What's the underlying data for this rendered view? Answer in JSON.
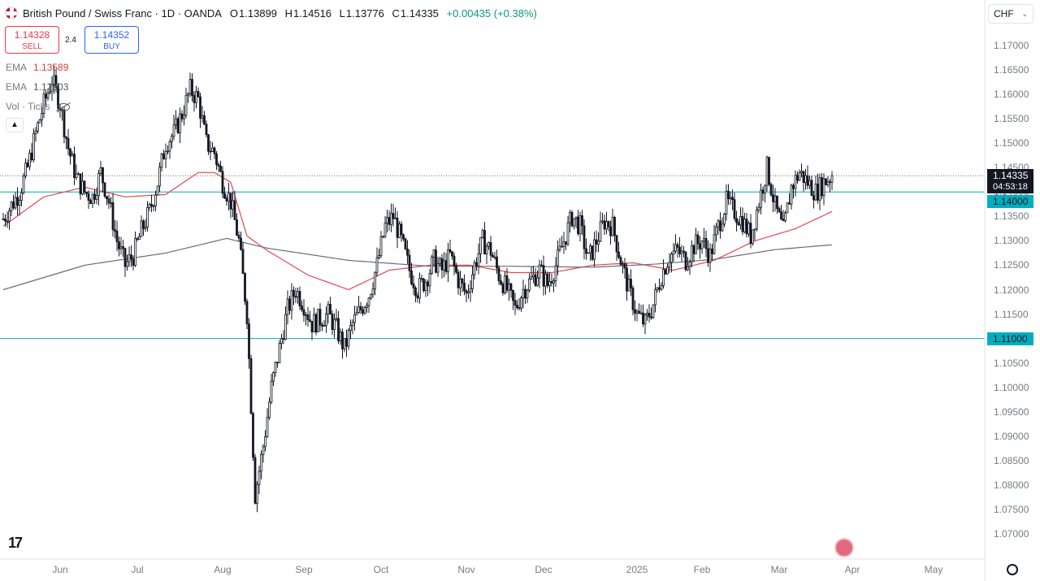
{
  "header": {
    "symbol_title": "British Pound / Swiss Franc · 1D · OANDA",
    "ohlc": [
      {
        "key": "O",
        "value": "1.13899"
      },
      {
        "key": "H",
        "value": "1.14516"
      },
      {
        "key": "L",
        "value": "1.13776"
      },
      {
        "key": "C",
        "value": "1.14335"
      }
    ],
    "change": "+0.00435 (+0.38%)",
    "flag_icon": "gbp-chf-flag-icon"
  },
  "trade": {
    "sell_price": "1.14328",
    "sell_label": "SELL",
    "spread": "2.4",
    "buy_price": "1.14352",
    "buy_label": "BUY"
  },
  "indicators": [
    {
      "name": "EMA",
      "value": "1.13589"
    },
    {
      "name": "EMA",
      "value": "1.12903"
    },
    {
      "name": "Vol · Ticks",
      "value": ""
    }
  ],
  "currency": "CHF",
  "price_labels": {
    "last": "1.14335",
    "countdown": "04:53:18",
    "level_high": "1.14000",
    "level_low": "1.11000"
  },
  "colors": {
    "up": "#089981",
    "down": "#131722",
    "ema_fast": "#e2494f",
    "ema_slow": "#6a6d78",
    "level": "#00aebf"
  },
  "chart_data": {
    "type": "candlestick",
    "symbol": "GBPCHF",
    "ylim": [
      1.065,
      1.175
    ],
    "y_ticks": [
      "1.17000",
      "1.16500",
      "1.16000",
      "1.15500",
      "1.15000",
      "1.14500",
      "1.14000",
      "1.13500",
      "1.13000",
      "1.12500",
      "1.12000",
      "1.11500",
      "1.11000",
      "1.10500",
      "1.10000",
      "1.09500",
      "1.09000",
      "1.08500",
      "1.08000",
      "1.07500",
      "1.07000"
    ],
    "x_ticks": [
      "Jun",
      "Jul",
      "Aug",
      "Sep",
      "Oct",
      "Nov",
      "Dec",
      "2025",
      "Feb",
      "Mar",
      "Apr",
      "May"
    ],
    "horizontal_levels": [
      1.14,
      1.11
    ],
    "last_price": 1.14335,
    "close_path": [
      [
        0,
        1.1345
      ],
      [
        8,
        1.14
      ],
      [
        12,
        1.145
      ],
      [
        16,
        1.152
      ],
      [
        20,
        1.158
      ],
      [
        24,
        1.163
      ],
      [
        28,
        1.158
      ],
      [
        32,
        1.149
      ],
      [
        36,
        1.143
      ],
      [
        40,
        1.14
      ],
      [
        44,
        1.139
      ],
      [
        48,
        1.144
      ],
      [
        52,
        1.138
      ],
      [
        56,
        1.13
      ],
      [
        60,
        1.125
      ],
      [
        64,
        1.127
      ],
      [
        68,
        1.132
      ],
      [
        72,
        1.136
      ],
      [
        76,
        1.142
      ],
      [
        80,
        1.15
      ],
      [
        84,
        1.152
      ],
      [
        88,
        1.156
      ],
      [
        92,
        1.161
      ],
      [
        96,
        1.159
      ],
      [
        100,
        1.15
      ],
      [
        104,
        1.148
      ],
      [
        108,
        1.142
      ],
      [
        112,
        1.138
      ],
      [
        116,
        1.13
      ],
      [
        120,
        1.115
      ],
      [
        124,
        1.078
      ],
      [
        128,
        1.088
      ],
      [
        132,
        1.1
      ],
      [
        136,
        1.108
      ],
      [
        140,
        1.116
      ],
      [
        144,
        1.12
      ],
      [
        148,
        1.117
      ],
      [
        152,
        1.113
      ],
      [
        156,
        1.114
      ],
      [
        160,
        1.115
      ],
      [
        164,
        1.112
      ],
      [
        168,
        1.108
      ],
      [
        172,
        1.113
      ],
      [
        176,
        1.116
      ],
      [
        180,
        1.119
      ],
      [
        184,
        1.125
      ],
      [
        188,
        1.133
      ],
      [
        192,
        1.135
      ],
      [
        196,
        1.13
      ],
      [
        200,
        1.124
      ],
      [
        204,
        1.12
      ],
      [
        208,
        1.122
      ],
      [
        212,
        1.126
      ],
      [
        216,
        1.124
      ],
      [
        220,
        1.127
      ],
      [
        224,
        1.122
      ],
      [
        228,
        1.119
      ],
      [
        232,
        1.125
      ],
      [
        236,
        1.13
      ],
      [
        240,
        1.128
      ],
      [
        244,
        1.123
      ],
      [
        248,
        1.12
      ],
      [
        252,
        1.116
      ],
      [
        256,
        1.12
      ],
      [
        260,
        1.122
      ],
      [
        264,
        1.124
      ],
      [
        268,
        1.121
      ],
      [
        272,
        1.125
      ],
      [
        276,
        1.13
      ],
      [
        280,
        1.135
      ],
      [
        284,
        1.133
      ],
      [
        288,
        1.126
      ],
      [
        292,
        1.13
      ],
      [
        296,
        1.134
      ],
      [
        300,
        1.133
      ],
      [
        304,
        1.126
      ],
      [
        308,
        1.12
      ],
      [
        312,
        1.115
      ],
      [
        316,
        1.113
      ],
      [
        320,
        1.117
      ],
      [
        324,
        1.123
      ],
      [
        328,
        1.127
      ],
      [
        332,
        1.128
      ],
      [
        336,
        1.126
      ],
      [
        340,
        1.129
      ],
      [
        344,
        1.13
      ],
      [
        348,
        1.127
      ],
      [
        352,
        1.133
      ],
      [
        356,
        1.138
      ],
      [
        360,
        1.136
      ],
      [
        364,
        1.134
      ],
      [
        368,
        1.131
      ],
      [
        372,
        1.138
      ],
      [
        376,
        1.145
      ],
      [
        380,
        1.137
      ],
      [
        384,
        1.132
      ],
      [
        388,
        1.141
      ],
      [
        392,
        1.144
      ],
      [
        396,
        1.142
      ],
      [
        400,
        1.14
      ],
      [
        404,
        1.142
      ],
      [
        408,
        1.14335
      ]
    ],
    "ema_fast": [
      [
        0,
        1.133
      ],
      [
        20,
        1.139
      ],
      [
        40,
        1.141
      ],
      [
        60,
        1.139
      ],
      [
        80,
        1.1395
      ],
      [
        96,
        1.144
      ],
      [
        104,
        1.144
      ],
      [
        112,
        1.142
      ],
      [
        120,
        1.131
      ],
      [
        130,
        1.128
      ],
      [
        150,
        1.123
      ],
      [
        170,
        1.12
      ],
      [
        190,
        1.124
      ],
      [
        210,
        1.125
      ],
      [
        230,
        1.125
      ],
      [
        250,
        1.1235
      ],
      [
        270,
        1.1235
      ],
      [
        290,
        1.125
      ],
      [
        310,
        1.1255
      ],
      [
        330,
        1.124
      ],
      [
        350,
        1.126
      ],
      [
        370,
        1.13
      ],
      [
        390,
        1.1325
      ],
      [
        408,
        1.136
      ]
    ],
    "ema_slow": [
      [
        0,
        1.12
      ],
      [
        40,
        1.125
      ],
      [
        80,
        1.1275
      ],
      [
        110,
        1.1305
      ],
      [
        130,
        1.1285
      ],
      [
        170,
        1.126
      ],
      [
        210,
        1.1248
      ],
      [
        250,
        1.1248
      ],
      [
        290,
        1.1246
      ],
      [
        320,
        1.1252
      ],
      [
        350,
        1.1262
      ],
      [
        380,
        1.1282
      ],
      [
        408,
        1.1292
      ]
    ]
  }
}
